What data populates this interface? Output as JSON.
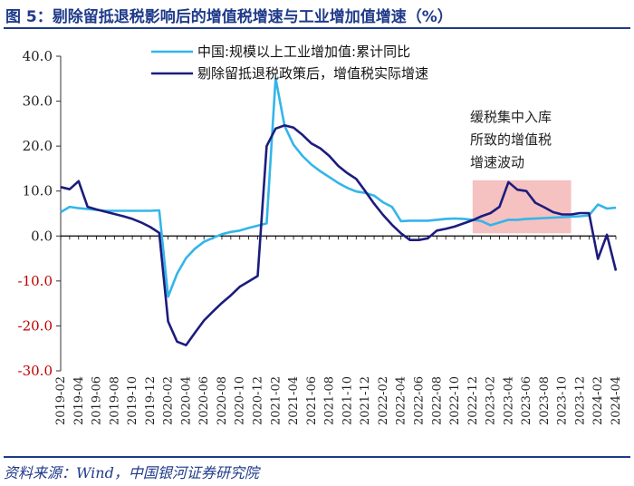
{
  "header": {
    "title": "图 5：剔除留抵退税影响后的增值税增速与工业增加值增速（%）"
  },
  "footer": {
    "source": "资料来源：Wind，中国银河证券研究院"
  },
  "chart_data": {
    "type": "line",
    "title": "图 5：剔除留抵退税影响后的增值税增速与工业增加值增速（%）",
    "xlabel": "",
    "ylabel": "",
    "ylim": [
      -30,
      40
    ],
    "yticks": [
      40,
      30,
      20,
      10,
      0,
      -10,
      -20,
      -30
    ],
    "ytick_labels": [
      "40.0",
      "30.0",
      "20.0",
      "10.0",
      "0.0",
      "-10.0",
      "-20.0",
      "-30.0"
    ],
    "x_tick_labels": [
      "2019-02",
      "2019-04",
      "2019-06",
      "2019-08",
      "2019-10",
      "2019-12",
      "2020-02",
      "2020-04",
      "2020-06",
      "2020-08",
      "2020-10",
      "2020-12",
      "2021-02",
      "2021-04",
      "2021-06",
      "2021-08",
      "2021-10",
      "2021-12",
      "2022-02",
      "2022-04",
      "2022-06",
      "2022-08",
      "2022-10",
      "2022-12",
      "2023-02",
      "2023-04",
      "2023-06",
      "2023-08",
      "2023-10",
      "2023-12",
      "2024-02",
      "2024-04"
    ],
    "x_start": "2019-02",
    "num_months": 63,
    "highlight": {
      "from": "2022-12",
      "to": "2023-11",
      "color": "#f4b6b6",
      "annotation": [
        "缓税集中入库",
        "所致的增值税",
        "增速波动"
      ]
    },
    "legend_position": "top-left",
    "series": [
      {
        "name": "中国:规模以上工业增加值:累计同比",
        "color": "#33b5ea",
        "values": [
          5.3,
          6.5,
          6.2,
          6.0,
          5.8,
          5.6,
          5.6,
          5.6,
          5.6,
          5.6,
          5.6,
          5.7,
          -13.5,
          -8.4,
          -4.9,
          -2.8,
          -1.3,
          -0.4,
          0.4,
          0.9,
          1.2,
          1.8,
          2.3,
          2.8,
          35.1,
          24.5,
          20.3,
          17.8,
          15.9,
          14.4,
          13.1,
          11.8,
          10.7,
          9.9,
          9.6,
          9.0,
          7.5,
          6.5,
          3.3,
          3.4,
          3.4,
          3.4,
          3.6,
          3.8,
          3.9,
          3.8,
          3.6,
          3.3,
          2.4,
          3.0,
          3.6,
          3.6,
          3.8,
          3.9,
          4.0,
          4.1,
          4.2,
          4.3,
          4.4,
          4.6,
          7.0,
          6.1,
          6.3
        ]
      },
      {
        "name": "剔除留抵退税政策后，增值税实际增速",
        "color": "#1c1c7e",
        "values": [
          10.9,
          10.4,
          12.2,
          6.5,
          5.9,
          5.4,
          4.9,
          4.4,
          3.8,
          3.0,
          2.0,
          0.7,
          -19.0,
          -23.5,
          -24.3,
          -21.5,
          -18.8,
          -16.8,
          -14.9,
          -13.2,
          -11.3,
          -10.1,
          -8.9,
          20.0,
          23.9,
          24.6,
          24.1,
          22.5,
          20.6,
          19.5,
          17.8,
          15.6,
          14.0,
          12.7,
          10.0,
          7.2,
          4.7,
          2.5,
          0.6,
          -0.9,
          -0.9,
          -0.5,
          1.2,
          1.6,
          2.1,
          2.8,
          3.5,
          4.4,
          5.1,
          6.5,
          12.0,
          10.3,
          10.0,
          7.4,
          6.4,
          5.3,
          4.8,
          4.8,
          5.1,
          5.1,
          -5.1,
          0.3,
          -7.7
        ]
      }
    ]
  }
}
